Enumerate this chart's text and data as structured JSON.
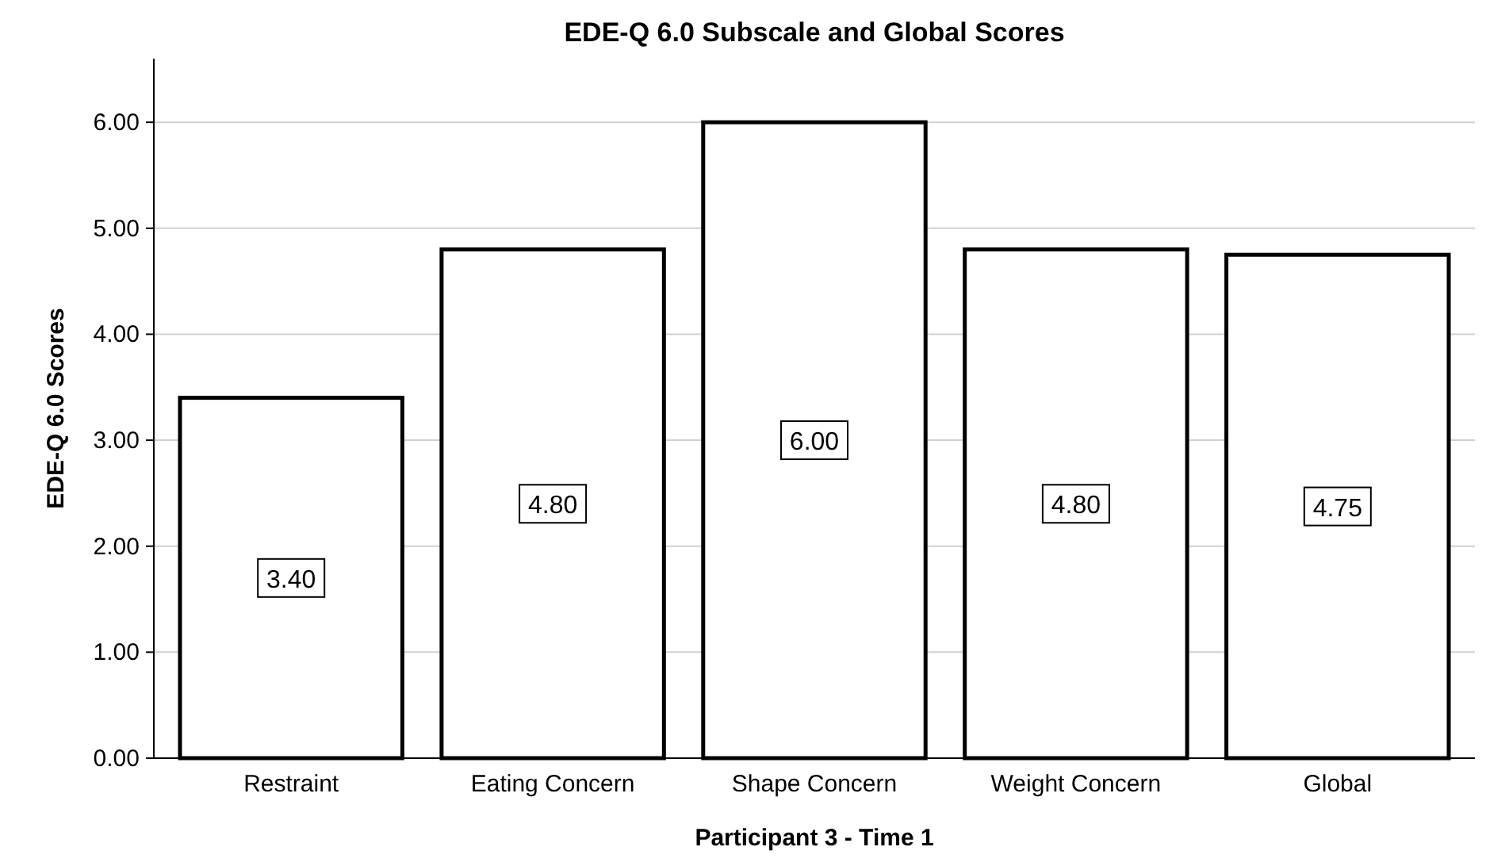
{
  "chart_data": {
    "type": "bar",
    "title": "EDE-Q 6.0 Subscale and Global Scores",
    "xlabel": "Participant 3 - Time 1",
    "ylabel": "EDE-Q 6.0 Scores",
    "categories": [
      "Restraint",
      "Eating Concern",
      "Shape Concern",
      "Weight Concern",
      "Global"
    ],
    "values": [
      3.4,
      4.8,
      6.0,
      4.8,
      4.75
    ],
    "value_labels": [
      "3.40",
      "4.80",
      "6.00",
      "4.80",
      "4.75"
    ],
    "color": "#ffffff",
    "ylim": [
      0,
      6.6
    ],
    "yticks": [
      {
        "value": 0,
        "label": "0.00"
      },
      {
        "value": 1,
        "label": "1.00"
      },
      {
        "value": 2,
        "label": "2.00"
      },
      {
        "value": 3,
        "label": "3.00"
      },
      {
        "value": 4,
        "label": "4.00"
      },
      {
        "value": 5,
        "label": "5.00"
      },
      {
        "value": 6,
        "label": "6.00"
      }
    ],
    "grid": "y"
  }
}
